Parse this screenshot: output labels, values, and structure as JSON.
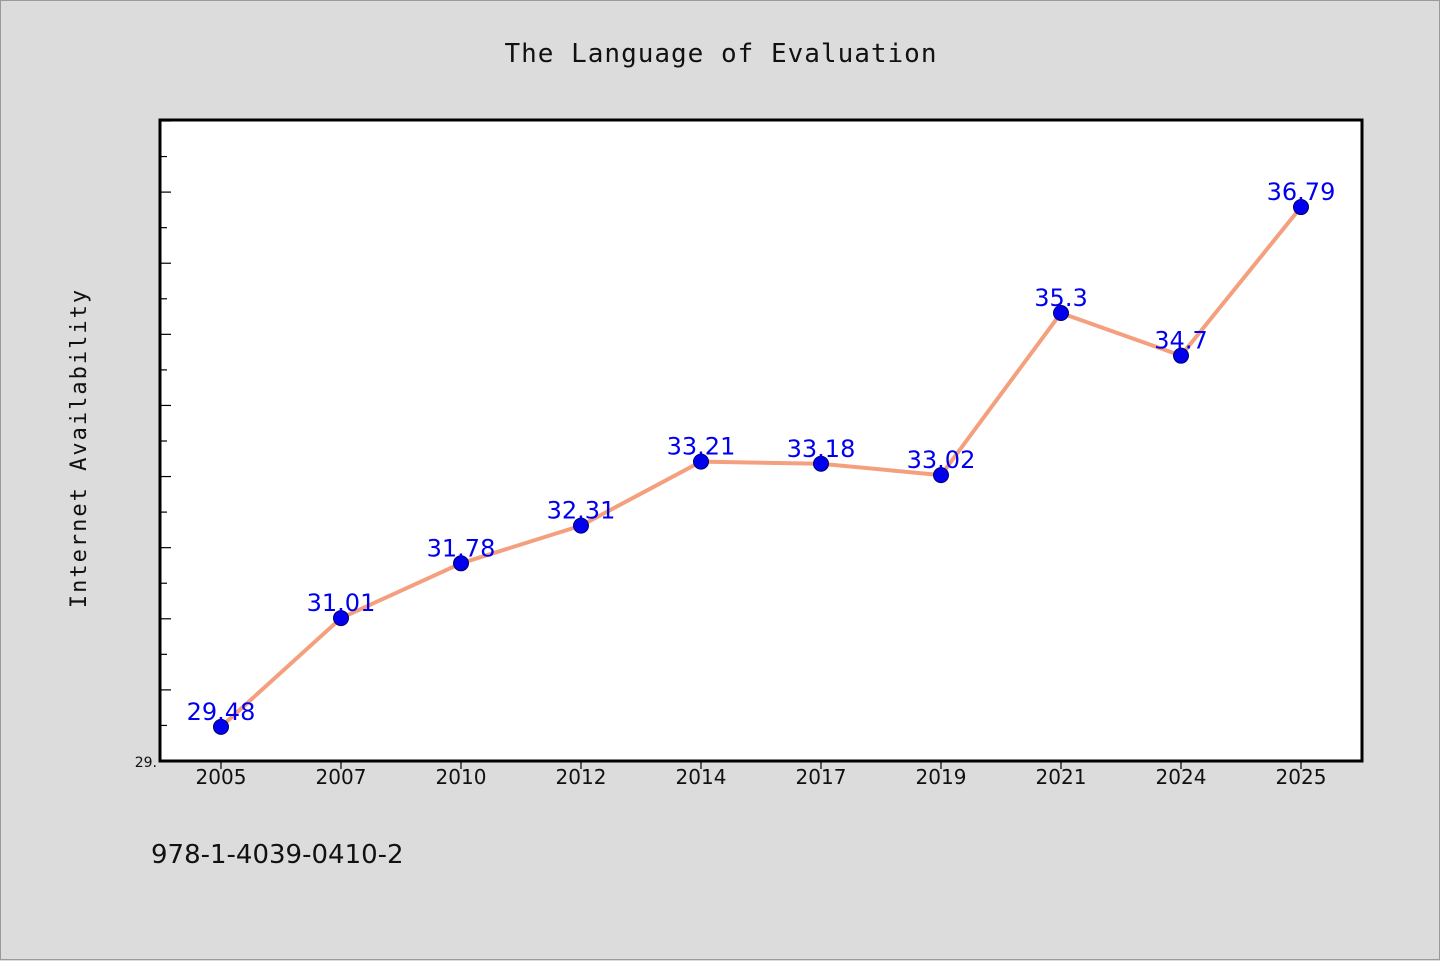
{
  "chart_data": {
    "type": "line",
    "title": "The Language of Evaluation",
    "xlabel": "",
    "ylabel": "Internet Availability",
    "categories": [
      "2005",
      "2007",
      "2010",
      "2012",
      "2014",
      "2017",
      "2019",
      "2021",
      "2024",
      "2025"
    ],
    "series": [
      {
        "values": [
          29.48,
          31.01,
          31.78,
          32.31,
          33.21,
          33.18,
          33.02,
          35.3,
          34.7,
          36.79
        ],
        "data_labels": [
          "29.48",
          "31.01",
          "31.78",
          "32.31",
          "33.21",
          "33.18",
          "33.02",
          "35.3",
          "34.7",
          "36.79"
        ]
      }
    ],
    "ylim": [
      29.0,
      38.0
    ],
    "y_tick_labels": [
      "29."
    ],
    "grid": false,
    "line_color": "#f4a07e",
    "marker_color": "#0000ee",
    "label_color": "#0000ee"
  },
  "footnote": "978-1-4039-0410-2"
}
